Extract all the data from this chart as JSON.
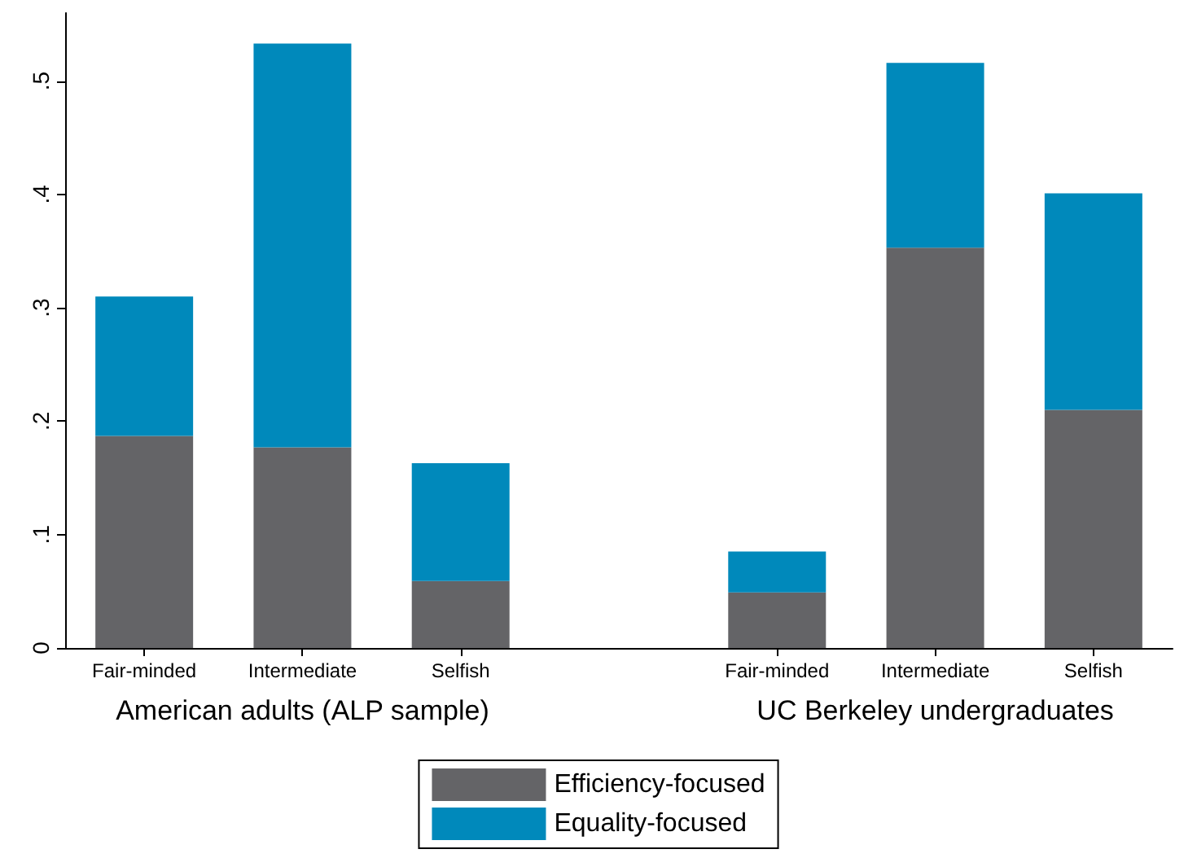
{
  "chart_data": {
    "type": "bar",
    "stacked": true,
    "categories": [
      "Fair-minded",
      "Intermediate",
      "Selfish",
      null,
      "Fair-minded",
      "Intermediate",
      "Selfish"
    ],
    "series": [
      {
        "name": "Efficiency-focused",
        "color": "#646467",
        "values": [
          0.187,
          0.177,
          0.059,
          null,
          0.049,
          0.353,
          0.21
        ]
      },
      {
        "name": "Equality-focused",
        "color": "#0089bb",
        "values": [
          0.123,
          0.356,
          0.104,
          null,
          0.036,
          0.163,
          0.191
        ]
      }
    ],
    "ylim": [
      0,
      0.56
    ],
    "yticks": [
      {
        "value": 0,
        "label": "0"
      },
      {
        "value": 0.1,
        "label": ".1"
      },
      {
        "value": 0.2,
        "label": ".2"
      },
      {
        "value": 0.3,
        "label": ".3"
      },
      {
        "value": 0.4,
        "label": ".4"
      },
      {
        "value": 0.5,
        "label": ".5"
      }
    ],
    "annotations": [
      "American adults (ALP sample)",
      "UC Berkeley undergraduates"
    ],
    "grid": false,
    "legend": "bottom"
  }
}
